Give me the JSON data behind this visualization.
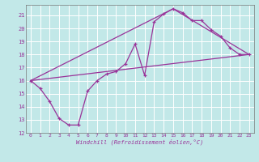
{
  "xlabel": "Windchill (Refroidissement éolien,°C)",
  "bg_color": "#c2e8e8",
  "line_color": "#993399",
  "grid_color": "#ffffff",
  "xlim": [
    -0.5,
    23.5
  ],
  "ylim": [
    12,
    21.8
  ],
  "xticks": [
    0,
    1,
    2,
    3,
    4,
    5,
    6,
    7,
    8,
    9,
    10,
    11,
    12,
    13,
    14,
    15,
    16,
    17,
    18,
    19,
    20,
    21,
    22,
    23
  ],
  "yticks": [
    12,
    13,
    14,
    15,
    16,
    17,
    18,
    19,
    20,
    21
  ],
  "line1_x": [
    0,
    1,
    2,
    3,
    4,
    5,
    6,
    7,
    8,
    9,
    10,
    11,
    12,
    13,
    14,
    15,
    16,
    17,
    18,
    19,
    20,
    21,
    22,
    23
  ],
  "line1_y": [
    16.0,
    15.4,
    14.4,
    13.1,
    12.6,
    12.6,
    15.2,
    16.0,
    16.5,
    16.7,
    17.3,
    18.8,
    16.4,
    20.5,
    21.1,
    21.5,
    21.2,
    20.6,
    20.6,
    19.9,
    19.4,
    18.5,
    18.0,
    18.0
  ],
  "line2_x": [
    0,
    23
  ],
  "line2_y": [
    16.0,
    18.0
  ],
  "line3_x": [
    0,
    15,
    23
  ],
  "line3_y": [
    16.0,
    21.5,
    18.0
  ]
}
